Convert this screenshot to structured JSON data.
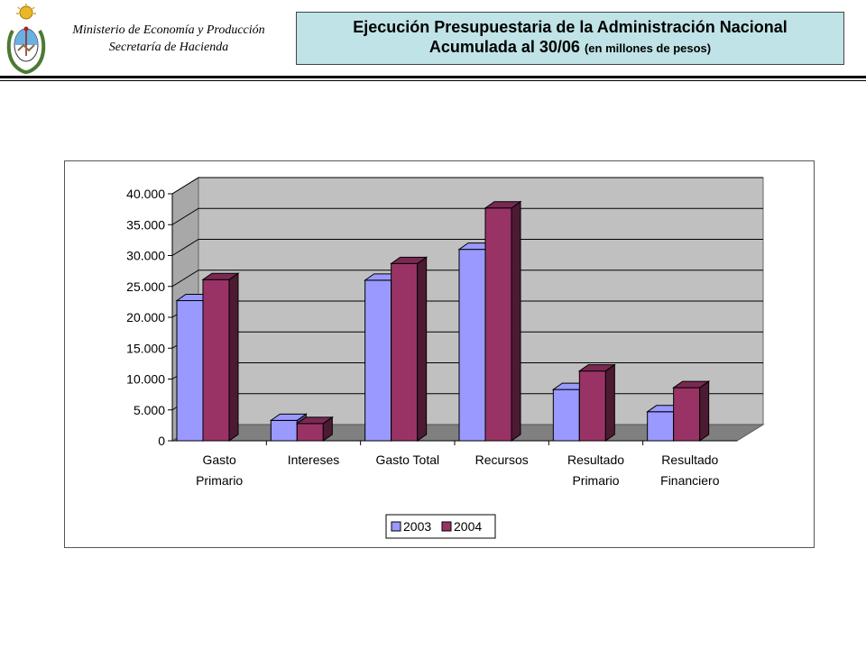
{
  "header": {
    "ministry_line1": "Ministerio de Economía y Producción",
    "ministry_line2": "Secretaría de Hacienda",
    "title_line1": "Ejecución Presupuestaria de la Administración Nacional",
    "title_line2": "Acumulada al 30/06",
    "title_units": "(en millones de pesos)",
    "logo": "argentina-coat-of-arms"
  },
  "colors": {
    "series_2003": "#9999ff",
    "series_2004": "#993366",
    "plot_back_wall": "#c0c0c0",
    "plot_floor": "#808080",
    "title_box": "#bfe3e6"
  },
  "chart_data": {
    "type": "bar",
    "style": "3d-clustered-column",
    "categories": [
      [
        "Gasto",
        "Primario"
      ],
      [
        "Intereses"
      ],
      [
        "Gasto Total"
      ],
      [
        "Recursos"
      ],
      [
        "Resultado",
        "Primario"
      ],
      [
        "Resultado",
        "Financiero"
      ]
    ],
    "series": [
      {
        "name": "2003",
        "values": [
          22700,
          3300,
          26000,
          31000,
          8300,
          4700
        ]
      },
      {
        "name": "2004",
        "values": [
          26100,
          2800,
          28700,
          37700,
          11300,
          8600
        ]
      }
    ],
    "ylim": [
      0,
      40000
    ],
    "yticks": [
      "0",
      "5.000",
      "10.000",
      "15.000",
      "20.000",
      "25.000",
      "30.000",
      "35.000",
      "40.000"
    ],
    "grid": true,
    "legend": "bottom"
  }
}
